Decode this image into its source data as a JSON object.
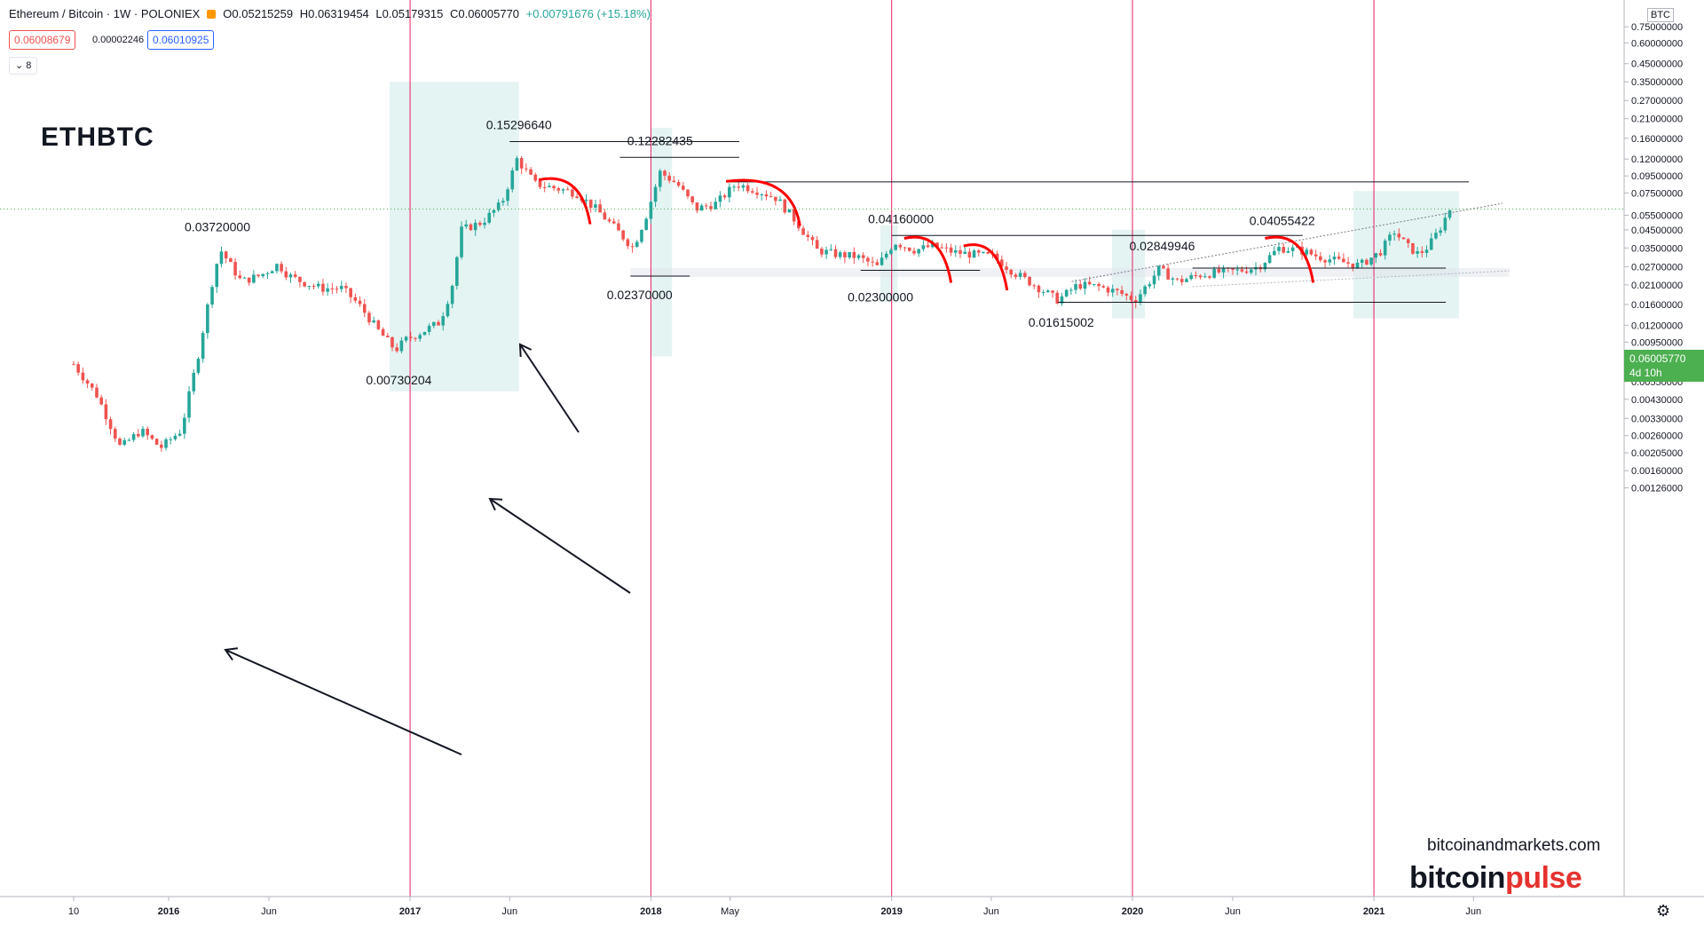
{
  "header": {
    "symbol": "Ethereum / Bitcoin · 1W · POLONIEX",
    "open": "O0.05215259",
    "high": "H0.06319454",
    "low": "L0.05179315",
    "close": "C0.06005770",
    "change": "+0.00791676 (+15.18%)",
    "bid": "0.06008679",
    "spread": "0.00002246",
    "ask": "0.06010925",
    "collapse": "⌄ 8"
  },
  "title_label": "ETHBTC",
  "unit_label": "BTC",
  "current_price": "0.06005770",
  "current_countdown": "4d 10h",
  "watermark": {
    "site": "bitcoinandmarkets.com",
    "brand_a": "bitcoin",
    "brand_b": "pulse"
  },
  "colors": {
    "up": "#26a69a",
    "down": "#ef5350",
    "current": "#4caf50",
    "vline": "#e91e63",
    "box": "#b2dfdb",
    "arc": "#ff0000"
  },
  "chart_data": {
    "type": "candlestick",
    "scale": "log",
    "x_ticks": [
      "10",
      "2016",
      "Jun",
      "2017",
      "Jun",
      "2018",
      "May",
      "2019",
      "Jun",
      "2020",
      "Jun",
      "2021",
      "Jun"
    ],
    "y_ticks": [
      "0.75000000",
      "0.60000000",
      "0.45000000",
      "0.35000000",
      "0.27000000",
      "0.21000000",
      "0.16000000",
      "0.12000000",
      "0.09500000",
      "0.07500000",
      "0.05500000",
      "0.04500000",
      "0.03500000",
      "0.02700000",
      "0.02100000",
      "0.01600000",
      "0.01200000",
      "0.00950000",
      "0.00750000",
      "0.00550000",
      "0.00430000",
      "0.00330000",
      "0.00260000",
      "0.00205000",
      "0.00160000",
      "0.00126000"
    ],
    "ylim": [
      0.0012,
      0.75
    ],
    "annotations": [
      {
        "text": "0.03720000",
        "date": "2016-03",
        "price": 0.0372
      },
      {
        "text": "0.00730204",
        "date": "2016-12",
        "price": 0.00730204
      },
      {
        "text": "0.15296640",
        "date": "2017-06",
        "price": 0.1529664
      },
      {
        "text": "0.12282435",
        "date": "2018-01",
        "price": 0.12282435
      },
      {
        "text": "0.02370000",
        "date": "2017-12",
        "price": 0.0237
      },
      {
        "text": "0.04160000",
        "date": "2019-01",
        "price": 0.0416
      },
      {
        "text": "0.02300000",
        "date": "2018-12",
        "price": 0.023
      },
      {
        "text": "0.01615002",
        "date": "2019-09",
        "price": 0.01615002
      },
      {
        "text": "0.02849946",
        "date": "2020-02",
        "price": 0.02849946
      },
      {
        "text": "0.04055422",
        "date": "2020-08",
        "price": 0.04055422
      }
    ],
    "anchors": [
      [
        "2015-08-10",
        0.007
      ],
      [
        "2015-09-15",
        0.0045
      ],
      [
        "2015-10-20",
        0.0022
      ],
      [
        "2015-11-20",
        0.0028
      ],
      [
        "2015-12-20",
        0.0022
      ],
      [
        "2016-01-20",
        0.0028
      ],
      [
        "2016-02-15",
        0.008
      ],
      [
        "2016-03-10",
        0.025
      ],
      [
        "2016-03-20",
        0.034
      ],
      [
        "2016-04-20",
        0.022
      ],
      [
        "2016-05-20",
        0.024
      ],
      [
        "2016-06-15",
        0.028
      ],
      [
        "2016-06-30",
        0.024
      ],
      [
        "2016-07-20",
        0.022
      ],
      [
        "2016-08-20",
        0.02
      ],
      [
        "2016-09-20",
        0.02
      ],
      [
        "2016-10-15",
        0.016
      ],
      [
        "2016-11-15",
        0.011
      ],
      [
        "2016-12-10",
        0.0085
      ],
      [
        "2016-12-25",
        0.0098
      ],
      [
        "2017-01-20",
        0.011
      ],
      [
        "2017-02-15",
        0.0125
      ],
      [
        "2017-03-05",
        0.02
      ],
      [
        "2017-03-20",
        0.045
      ],
      [
        "2017-04-20",
        0.05
      ],
      [
        "2017-05-20",
        0.065
      ],
      [
        "2017-06-12",
        0.12
      ],
      [
        "2017-07-10",
        0.085
      ],
      [
        "2017-08-10",
        0.08
      ],
      [
        "2017-09-10",
        0.075
      ],
      [
        "2017-10-10",
        0.06
      ],
      [
        "2017-11-10",
        0.045
      ],
      [
        "2017-12-05",
        0.035
      ],
      [
        "2017-12-25",
        0.055
      ],
      [
        "2018-01-15",
        0.1
      ],
      [
        "2018-02-10",
        0.085
      ],
      [
        "2018-03-10",
        0.06
      ],
      [
        "2018-04-10",
        0.065
      ],
      [
        "2018-05-10",
        0.085
      ],
      [
        "2018-06-10",
        0.078
      ],
      [
        "2018-07-10",
        0.07
      ],
      [
        "2018-08-10",
        0.05
      ],
      [
        "2018-09-10",
        0.034
      ],
      [
        "2018-10-10",
        0.032
      ],
      [
        "2018-11-10",
        0.031
      ],
      [
        "2018-12-10",
        0.027
      ],
      [
        "2019-01-05",
        0.038
      ],
      [
        "2019-02-05",
        0.034
      ],
      [
        "2019-03-05",
        0.036
      ],
      [
        "2019-04-05",
        0.033
      ],
      [
        "2019-05-05",
        0.032
      ],
      [
        "2019-06-05",
        0.031
      ],
      [
        "2019-07-05",
        0.025
      ],
      [
        "2019-08-05",
        0.021
      ],
      [
        "2019-09-10",
        0.017
      ],
      [
        "2019-10-10",
        0.021
      ],
      [
        "2019-11-10",
        0.0205
      ],
      [
        "2019-12-10",
        0.019
      ],
      [
        "2020-01-05",
        0.017
      ],
      [
        "2020-02-10",
        0.026
      ],
      [
        "2020-03-10",
        0.022
      ],
      [
        "2020-04-10",
        0.024
      ],
      [
        "2020-05-10",
        0.025
      ],
      [
        "2020-06-10",
        0.0255
      ],
      [
        "2020-07-10",
        0.027
      ],
      [
        "2020-08-10",
        0.035
      ],
      [
        "2020-09-10",
        0.034
      ],
      [
        "2020-10-10",
        0.031
      ],
      [
        "2020-11-10",
        0.029
      ],
      [
        "2020-12-10",
        0.0275
      ],
      [
        "2021-01-10",
        0.033
      ],
      [
        "2021-02-01",
        0.044
      ],
      [
        "2021-02-20",
        0.036
      ],
      [
        "2021-03-10",
        0.032
      ],
      [
        "2021-03-25",
        0.036
      ],
      [
        "2021-04-10",
        0.045
      ],
      [
        "2021-04-26",
        0.06
      ]
    ]
  }
}
